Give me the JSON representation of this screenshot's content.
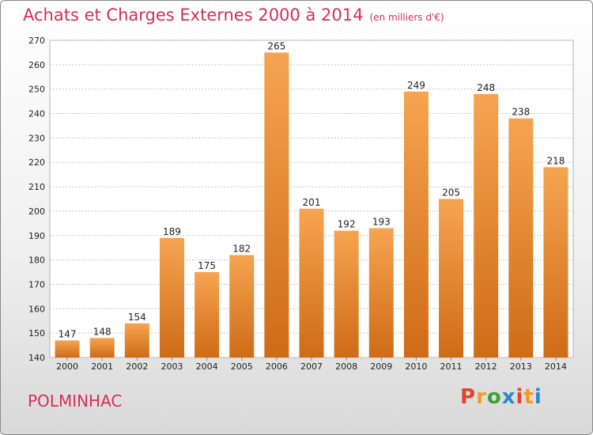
{
  "header": {
    "title": "Achats et Charges Externes 2000 à 2014",
    "subtitle": "(en milliers d'€)"
  },
  "footer": {
    "place": "POLMINHAC",
    "logo_letters": [
      "P",
      "r",
      "o",
      "x",
      "i",
      "t",
      "i"
    ]
  },
  "colors": {
    "title": "#d62f55",
    "bar_top": "#f6a451",
    "bar_bottom": "#cf6b17",
    "logo": [
      "#e0442b",
      "#f39a1e",
      "#3aa336",
      "#2f86c8",
      "#e0442b",
      "#f39a1e",
      "#2f86c8"
    ]
  },
  "chart_data": {
    "type": "bar",
    "title": "Achats et Charges Externes 2000 à 2014",
    "subtitle": "(en milliers d'€)",
    "categories": [
      "2000",
      "2001",
      "2002",
      "2003",
      "2004",
      "2005",
      "2006",
      "2007",
      "2008",
      "2009",
      "2010",
      "2011",
      "2012",
      "2013",
      "2014"
    ],
    "values": [
      147,
      148,
      154,
      189,
      175,
      182,
      265,
      201,
      192,
      193,
      249,
      205,
      248,
      238,
      218
    ],
    "ylim": [
      140,
      270
    ],
    "yticks": [
      140,
      150,
      160,
      170,
      180,
      190,
      200,
      210,
      220,
      230,
      240,
      250,
      260,
      270
    ],
    "grid": true,
    "legend": "none"
  }
}
